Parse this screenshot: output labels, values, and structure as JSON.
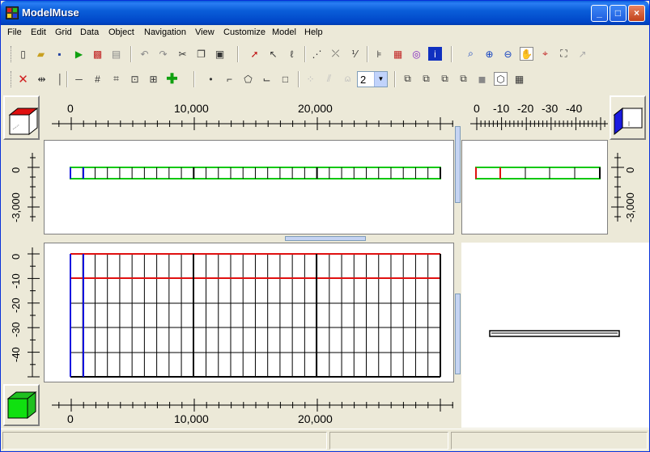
{
  "window": {
    "title": "ModelMuse",
    "buttons": {
      "minimize": "_",
      "maximize": "□",
      "close": "×"
    }
  },
  "menu": [
    "File",
    "Edit",
    "Grid",
    "Data",
    "Object",
    "Navigation",
    "View",
    "Customize",
    "Model",
    "Help"
  ],
  "toolbar": {
    "layer_combo_value": "2"
  },
  "top_view": {
    "x_ticks": [
      "0",
      "10,000",
      "20,000"
    ],
    "y_ticks": [
      "0",
      "-3,000"
    ]
  },
  "side_view": {
    "x_ticks": [
      "0",
      "-10",
      "-20",
      "-30",
      "-40"
    ],
    "y_ticks": [
      "0",
      "-3,000"
    ]
  },
  "front_view": {
    "x_ticks": [
      "0",
      "10,000",
      "20,000"
    ],
    "y_ticks": [
      "0",
      "-10",
      "-20",
      "-30",
      "-40"
    ]
  },
  "colors": {
    "grid_red": "#e01010",
    "grid_green": "#10c810",
    "grid_blue": "#1010e0",
    "titlebar": "#0a5ed9"
  },
  "status": [
    "",
    "",
    ""
  ]
}
